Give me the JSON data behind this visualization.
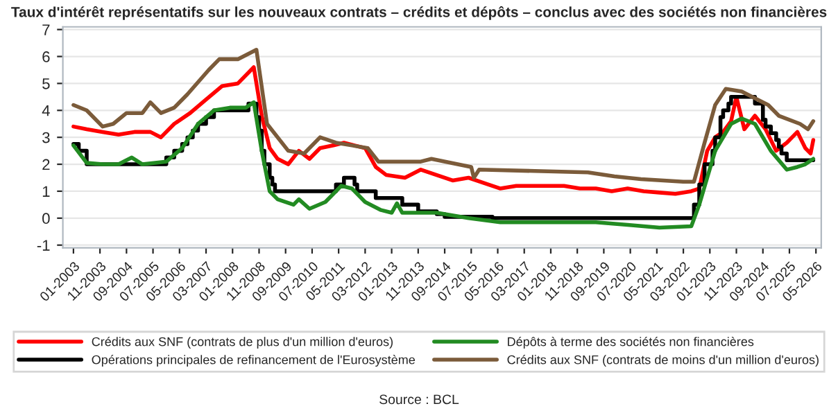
{
  "chart_data": {
    "type": "line",
    "title": "Taux d'intérêt représentatifs sur les nouveaux contrats – crédits et dépôts – conclus avec des sociétés non financières",
    "xlim": [
      "2002-09",
      "2026-07"
    ],
    "ylim": [
      -1.1,
      7.1
    ],
    "yticks": [
      -1,
      0,
      1,
      2,
      3,
      4,
      5,
      6,
      7
    ],
    "xticks": [
      {
        "value": "2003-01",
        "label": "01-2003"
      },
      {
        "value": "2003-11",
        "label": "11-2003"
      },
      {
        "value": "2004-09",
        "label": "09-2004"
      },
      {
        "value": "2005-07",
        "label": "07-2005"
      },
      {
        "value": "2006-05",
        "label": "05-2006"
      },
      {
        "value": "2007-03",
        "label": "03-2007"
      },
      {
        "value": "2008-01",
        "label": "01-2008"
      },
      {
        "value": "2008-11",
        "label": "11-2008"
      },
      {
        "value": "2009-09",
        "label": "09-2009"
      },
      {
        "value": "2010-07",
        "label": "07-2010"
      },
      {
        "value": "2011-05",
        "label": "05-2011"
      },
      {
        "value": "2012-03",
        "label": "03-2012"
      },
      {
        "value": "2013-01",
        "label": "01-2013"
      },
      {
        "value": "2013-11",
        "label": "11-2013"
      },
      {
        "value": "2014-09",
        "label": "09-2014"
      },
      {
        "value": "2015-07",
        "label": "07-2015"
      },
      {
        "value": "2016-05",
        "label": "05-2016"
      },
      {
        "value": "2017-03",
        "label": "03-2017"
      },
      {
        "value": "2018-01",
        "label": "01-2018"
      },
      {
        "value": "2018-11",
        "label": "11-2018"
      },
      {
        "value": "2019-09",
        "label": "09-2019"
      },
      {
        "value": "2020-07",
        "label": "07-2020"
      },
      {
        "value": "2021-05",
        "label": "05-2021"
      },
      {
        "value": "2022-03",
        "label": "03-2022"
      },
      {
        "value": "2023-01",
        "label": "01-2023"
      },
      {
        "value": "2023-11",
        "label": "11-2023"
      },
      {
        "value": "2024-09",
        "label": "09-2024"
      },
      {
        "value": "2025-07",
        "label": "07-2025"
      },
      {
        "value": "2026-05",
        "label": "05-2026"
      }
    ],
    "grid": "y",
    "legend": "bottom",
    "marker": "none",
    "line_style": "solid",
    "annotations": [
      "Source : BCL"
    ],
    "series": [
      {
        "name": "Crédits aux SNF (contrats de plus d'un million d'euros)",
        "color": "#ff0000",
        "x": [
          "2003-01",
          "2003-06",
          "2003-12",
          "2004-06",
          "2004-12",
          "2005-06",
          "2005-10",
          "2006-03",
          "2006-09",
          "2007-03",
          "2007-09",
          "2008-03",
          "2008-09",
          "2008-12",
          "2009-03",
          "2009-06",
          "2009-10",
          "2010-02",
          "2010-06",
          "2010-10",
          "2011-03",
          "2011-07",
          "2011-11",
          "2012-03",
          "2012-07",
          "2012-11",
          "2013-06",
          "2013-12",
          "2014-06",
          "2014-12",
          "2015-06",
          "2015-12",
          "2016-06",
          "2016-12",
          "2017-06",
          "2017-12",
          "2018-06",
          "2018-12",
          "2019-06",
          "2019-12",
          "2020-06",
          "2020-12",
          "2021-06",
          "2021-12",
          "2022-06",
          "2022-09",
          "2022-12",
          "2023-03",
          "2023-06",
          "2023-09",
          "2023-11",
          "2024-02",
          "2024-06",
          "2024-10",
          "2025-02",
          "2025-06",
          "2025-10",
          "2026-01",
          "2026-03",
          "2026-04"
        ],
        "values": [
          3.4,
          3.3,
          3.2,
          3.1,
          3.2,
          3.2,
          3.0,
          3.5,
          3.9,
          4.4,
          4.9,
          5.0,
          5.6,
          3.8,
          2.6,
          2.2,
          2.0,
          2.5,
          2.2,
          2.6,
          2.7,
          2.8,
          2.7,
          2.6,
          1.9,
          1.6,
          1.5,
          1.8,
          1.6,
          1.4,
          1.5,
          1.3,
          1.1,
          1.2,
          1.2,
          1.2,
          1.2,
          1.1,
          1.1,
          1.0,
          1.1,
          1.0,
          0.95,
          0.9,
          1.0,
          1.1,
          2.5,
          3.0,
          3.2,
          3.6,
          4.5,
          3.3,
          3.8,
          3.3,
          2.5,
          2.8,
          3.2,
          2.6,
          2.4,
          2.9
        ]
      },
      {
        "name": "Opérations principales de refinancement de l'Eurosystème",
        "color": "#000000",
        "type": "step",
        "x": [
          "2003-01",
          "2003-03",
          "2003-06",
          "2005-12",
          "2006-03",
          "2006-06",
          "2006-08",
          "2006-10",
          "2006-12",
          "2007-03",
          "2007-06",
          "2008-07",
          "2008-10",
          "2008-11",
          "2008-12",
          "2009-01",
          "2009-03",
          "2009-04",
          "2009-05",
          "2011-04",
          "2011-07",
          "2011-11",
          "2011-12",
          "2012-07",
          "2013-05",
          "2013-11",
          "2014-06",
          "2014-09",
          "2016-03",
          "2022-07",
          "2022-09",
          "2022-11",
          "2023-02",
          "2023-03",
          "2023-05",
          "2023-06",
          "2023-08",
          "2023-09",
          "2024-06",
          "2024-09",
          "2024-10",
          "2024-12",
          "2025-02",
          "2025-03",
          "2025-04",
          "2025-06",
          "2026-04"
        ],
        "values": [
          2.75,
          2.5,
          2.0,
          2.25,
          2.5,
          2.75,
          3.0,
          3.25,
          3.5,
          3.75,
          4.0,
          4.25,
          3.75,
          3.25,
          2.5,
          2.0,
          1.5,
          1.25,
          1.0,
          1.25,
          1.5,
          1.25,
          1.0,
          0.75,
          0.5,
          0.25,
          0.15,
          0.05,
          0.0,
          0.5,
          1.25,
          2.0,
          2.5,
          3.0,
          3.75,
          4.0,
          4.25,
          4.5,
          4.25,
          3.65,
          3.4,
          3.15,
          2.9,
          2.65,
          2.4,
          2.15,
          2.15
        ]
      },
      {
        "name": "Dépôts à terme des sociétés non financières",
        "color": "#228b22",
        "x": [
          "2003-01",
          "2003-06",
          "2003-12",
          "2004-06",
          "2004-11",
          "2005-03",
          "2005-12",
          "2006-06",
          "2006-12",
          "2007-06",
          "2007-12",
          "2008-06",
          "2008-09",
          "2008-12",
          "2009-03",
          "2009-06",
          "2009-12",
          "2010-02",
          "2010-06",
          "2010-12",
          "2011-06",
          "2011-10",
          "2012-03",
          "2012-09",
          "2013-01",
          "2013-03",
          "2013-05",
          "2014-06",
          "2015-06",
          "2016-06",
          "2017-06",
          "2018-06",
          "2019-06",
          "2020-06",
          "2021-06",
          "2022-06",
          "2022-09",
          "2022-12",
          "2023-03",
          "2023-09",
          "2024-01",
          "2024-06",
          "2024-12",
          "2025-06",
          "2025-10",
          "2026-01",
          "2026-04"
        ],
        "values": [
          2.7,
          2.05,
          2.0,
          2.0,
          2.25,
          2.0,
          2.1,
          2.6,
          3.5,
          4.0,
          4.1,
          4.1,
          4.3,
          2.5,
          1.0,
          0.7,
          0.5,
          0.7,
          0.35,
          0.6,
          1.2,
          1.1,
          0.6,
          0.3,
          0.2,
          0.55,
          0.2,
          0.2,
          0.0,
          -0.15,
          -0.15,
          -0.15,
          -0.15,
          -0.25,
          -0.35,
          -0.3,
          0.5,
          1.5,
          2.5,
          3.5,
          3.7,
          3.5,
          2.5,
          1.8,
          1.9,
          2.0,
          2.2
        ]
      },
      {
        "name": "Crédits aux SNF (contrats de moins d'un million d'euros)",
        "color": "#7b5b3a",
        "x": [
          "2003-01",
          "2003-06",
          "2003-12",
          "2004-04",
          "2004-09",
          "2005-03",
          "2005-06",
          "2005-10",
          "2006-03",
          "2006-08",
          "2007-04",
          "2007-08",
          "2008-03",
          "2008-10",
          "2009-02",
          "2009-10",
          "2010-04",
          "2010-10",
          "2011-04",
          "2012-04",
          "2012-08",
          "2013-12",
          "2014-04",
          "2015-07",
          "2015-08",
          "2015-10",
          "2017-07",
          "2019-03",
          "2020-01",
          "2020-11",
          "2022-03",
          "2022-07",
          "2022-11",
          "2023-03",
          "2023-07",
          "2024-01",
          "2024-07",
          "2024-11",
          "2025-03",
          "2025-11",
          "2026-02",
          "2026-04"
        ],
        "values": [
          4.2,
          4.0,
          3.4,
          3.5,
          3.9,
          3.9,
          4.3,
          3.9,
          4.1,
          4.6,
          5.5,
          5.9,
          5.9,
          6.25,
          3.5,
          2.5,
          2.4,
          3.0,
          2.8,
          2.6,
          2.1,
          2.1,
          2.2,
          1.9,
          1.5,
          1.8,
          1.75,
          1.7,
          1.55,
          1.45,
          1.35,
          1.35,
          2.8,
          4.2,
          4.8,
          4.7,
          4.4,
          4.2,
          3.8,
          3.5,
          3.3,
          3.6
        ]
      }
    ]
  }
}
